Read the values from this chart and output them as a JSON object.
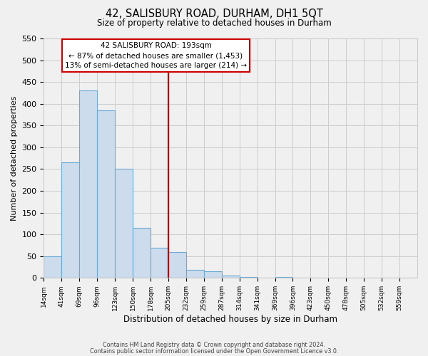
{
  "title": "42, SALISBURY ROAD, DURHAM, DH1 5QT",
  "subtitle": "Size of property relative to detached houses in Durham",
  "xlabel": "Distribution of detached houses by size in Durham",
  "ylabel": "Number of detached properties",
  "bar_color": "#ccdcec",
  "bar_edge_color": "#6aaad4",
  "bar_heights": [
    50,
    265,
    430,
    385,
    250,
    115,
    70,
    60,
    18,
    15,
    6,
    2,
    0,
    2,
    0,
    0,
    0,
    0,
    0,
    0,
    0
  ],
  "bin_labels": [
    "14sqm",
    "41sqm",
    "69sqm",
    "96sqm",
    "123sqm",
    "150sqm",
    "178sqm",
    "205sqm",
    "232sqm",
    "259sqm",
    "287sqm",
    "314sqm",
    "341sqm",
    "369sqm",
    "396sqm",
    "423sqm",
    "450sqm",
    "478sqm",
    "505sqm",
    "532sqm",
    "559sqm"
  ],
  "ylim": [
    0,
    550
  ],
  "yticks": [
    0,
    50,
    100,
    150,
    200,
    250,
    300,
    350,
    400,
    450,
    500,
    550
  ],
  "property_line_x": 7.0,
  "annotation_title": "42 SALISBURY ROAD: 193sqm",
  "annotation_line1": "← 87% of detached houses are smaller (1,453)",
  "annotation_line2": "13% of semi-detached houses are larger (214) →",
  "annotation_box_color": "#ffffff",
  "annotation_box_edge": "#cc0000",
  "vline_color": "#cc0000",
  "grid_color": "#cccccc",
  "footer_line1": "Contains HM Land Registry data © Crown copyright and database right 2024.",
  "footer_line2": "Contains public sector information licensed under the Open Government Licence v3.0.",
  "background_color": "#f0f0f0"
}
